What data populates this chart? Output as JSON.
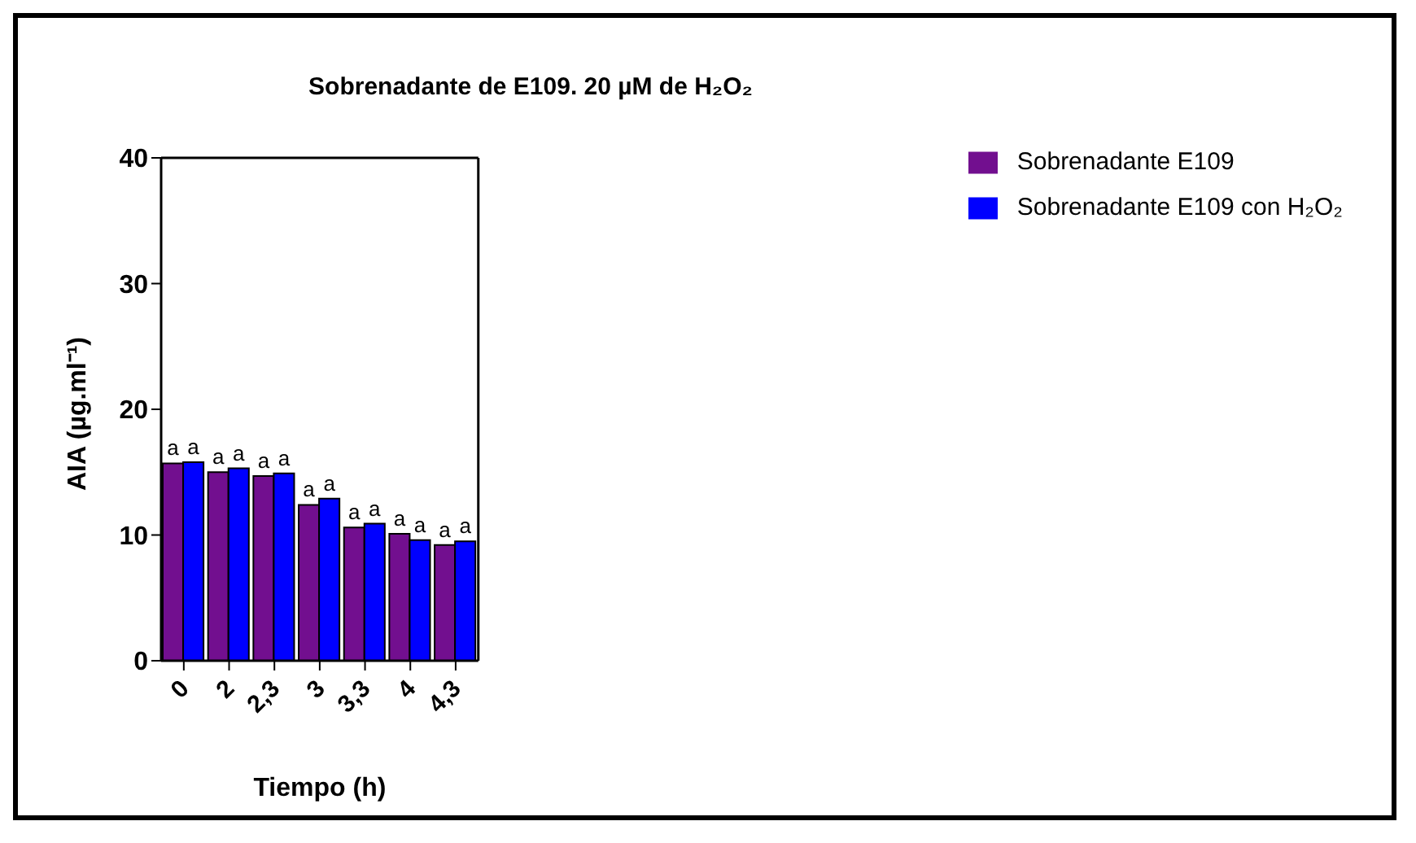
{
  "chart_data": {
    "type": "bar",
    "title": "Sobrenadante de E109. 20 µM de H₂O₂",
    "xlabel": "Tiempo (h)",
    "ylabel": "AIA (µg.ml⁻¹)",
    "categories": [
      "0",
      "2",
      "2,3",
      "3",
      "3,3",
      "4",
      "4,3"
    ],
    "series": [
      {
        "name": "Sobrenadante E109",
        "color": "#720f8f",
        "values": [
          15.7,
          15.0,
          14.7,
          12.4,
          10.6,
          10.1,
          9.2
        ],
        "value_labels": [
          "a",
          "a",
          "a",
          "a",
          "a",
          "a",
          "a"
        ]
      },
      {
        "name": "Sobrenadante E109 con H₂O₂",
        "color": "#0000ff",
        "values": [
          15.8,
          15.3,
          14.9,
          12.9,
          10.9,
          9.6,
          9.5
        ],
        "value_labels": [
          "a",
          "a",
          "a",
          "a",
          "a",
          "a",
          "a"
        ]
      }
    ],
    "ylim": [
      0,
      40
    ],
    "yticks": [
      0,
      10,
      20,
      30,
      40
    ],
    "grid": false,
    "legend": "top right"
  }
}
